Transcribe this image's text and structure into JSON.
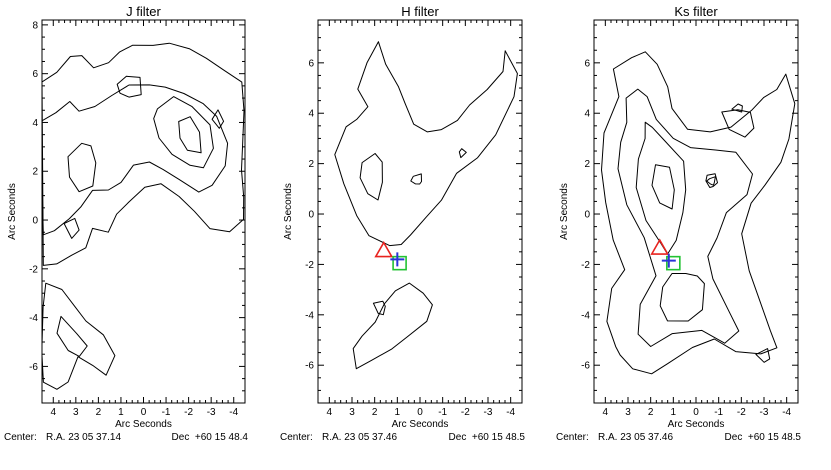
{
  "chart_data": [
    {
      "type": "contour",
      "title": "J filter",
      "xlabel": "Arc Seconds",
      "ylabel": "Arc Seconds",
      "xlim": [
        4.5,
        -4.5
      ],
      "ylim": [
        -7.5,
        8.2
      ],
      "xticks": [
        "4",
        "3",
        "2",
        "1",
        "0",
        "-1",
        "-2",
        "-3",
        "-4"
      ],
      "yticks": [
        "-6",
        "-4",
        "-2",
        "0",
        "2",
        "4",
        "6",
        "8"
      ],
      "center": {
        "prefix": "Center:",
        "ra": "R.A. 23 05 37.14",
        "dec": "Dec  +60 15 48.4"
      },
      "markers": []
    },
    {
      "type": "contour",
      "title": "H filter",
      "xlabel": "Arc Seconds",
      "ylabel": "Arc Seconds",
      "xlim": [
        4.5,
        -4.5
      ],
      "ylim": [
        -7.5,
        7.7
      ],
      "xticks": [
        "4",
        "3",
        "2",
        "1",
        "0",
        "-1",
        "-2",
        "-3",
        "-4"
      ],
      "yticks": [
        "-6",
        "-4",
        "-2",
        "0",
        "2",
        "4",
        "6"
      ],
      "center": {
        "prefix": "Center:",
        "ra": "R.A. 23 05 37.46",
        "dec": "Dec  +60 15 48.5"
      },
      "markers": [
        {
          "shape": "triangle",
          "x": 1.6,
          "y": -1.45,
          "color": "#e8231f"
        },
        {
          "shape": "square",
          "x": 0.9,
          "y": -1.95,
          "color": "#22c232"
        },
        {
          "shape": "cross",
          "x": 1.0,
          "y": -1.8,
          "color": "#2a33d8"
        }
      ]
    },
    {
      "type": "contour",
      "title": "Ks filter",
      "xlabel": "Arc Seconds",
      "ylabel": "Arc Seconds",
      "xlim": [
        4.5,
        -4.5
      ],
      "ylim": [
        -7.5,
        7.7
      ],
      "xticks": [
        "4",
        "3",
        "2",
        "1",
        "0",
        "-1",
        "-2",
        "-3",
        "-4"
      ],
      "yticks": [
        "-6",
        "-4",
        "-2",
        "0",
        "2",
        "4",
        "6"
      ],
      "center": {
        "prefix": "Center:",
        "ra": "R.A. 23 05 37.46",
        "dec": "Dec  +60 15 48.5"
      },
      "markers": [
        {
          "shape": "triangle",
          "x": 1.6,
          "y": -1.35,
          "color": "#e8231f"
        },
        {
          "shape": "square",
          "x": 1.0,
          "y": -1.95,
          "color": "#22c232"
        },
        {
          "shape": "cross",
          "x": 1.2,
          "y": -1.85,
          "color": "#2a33d8"
        }
      ]
    }
  ]
}
